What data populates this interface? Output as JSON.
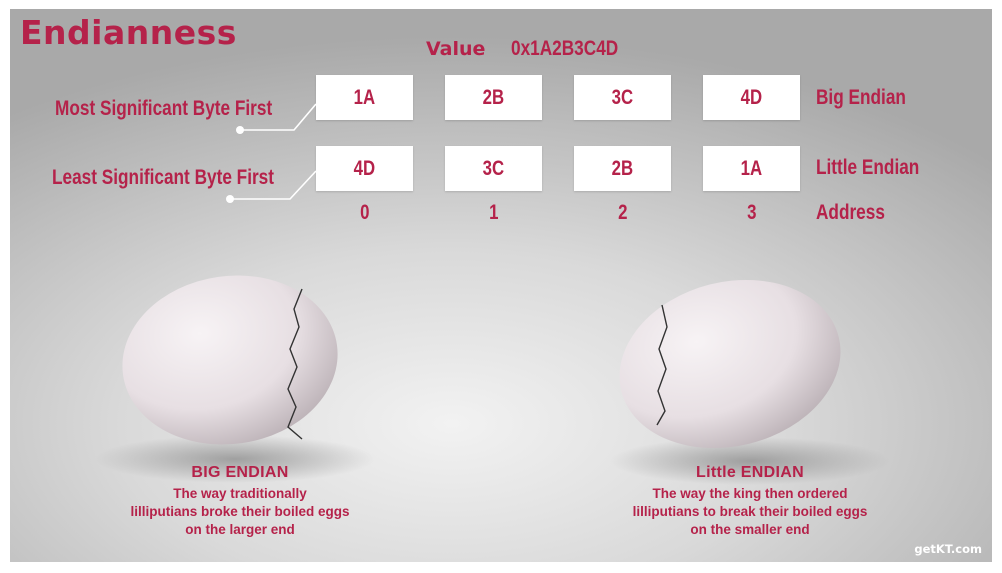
{
  "title": "Endianness",
  "value_label": "Value",
  "value": "0x1A2B3C4D",
  "rows": [
    {
      "label": "Most Significant Byte  First",
      "bytes": [
        "1A",
        "2B",
        "3C",
        "4D"
      ],
      "name": "Big Endian"
    },
    {
      "label": "Least Significant Byte  First",
      "bytes": [
        "4D",
        "3C",
        "2B",
        "1A"
      ],
      "name": "Little Endian"
    }
  ],
  "addresses": [
    "0",
    "1",
    "2",
    "3"
  ],
  "address_label": "Address",
  "eggs": [
    {
      "heading": "BIG ENDIAN",
      "lines": [
        "The way traditionally",
        "lilliputians broke their boiled eggs",
        "on the larger end"
      ]
    },
    {
      "heading": "Little ENDIAN",
      "lines": [
        "The way the king then ordered",
        "lilliputians to break their boiled eggs",
        "on the smaller end"
      ]
    }
  ],
  "watermark": "getKT.com",
  "colors": {
    "accent": "#b5224a",
    "box": "#ffffff",
    "egg": "#e8e1e4"
  }
}
